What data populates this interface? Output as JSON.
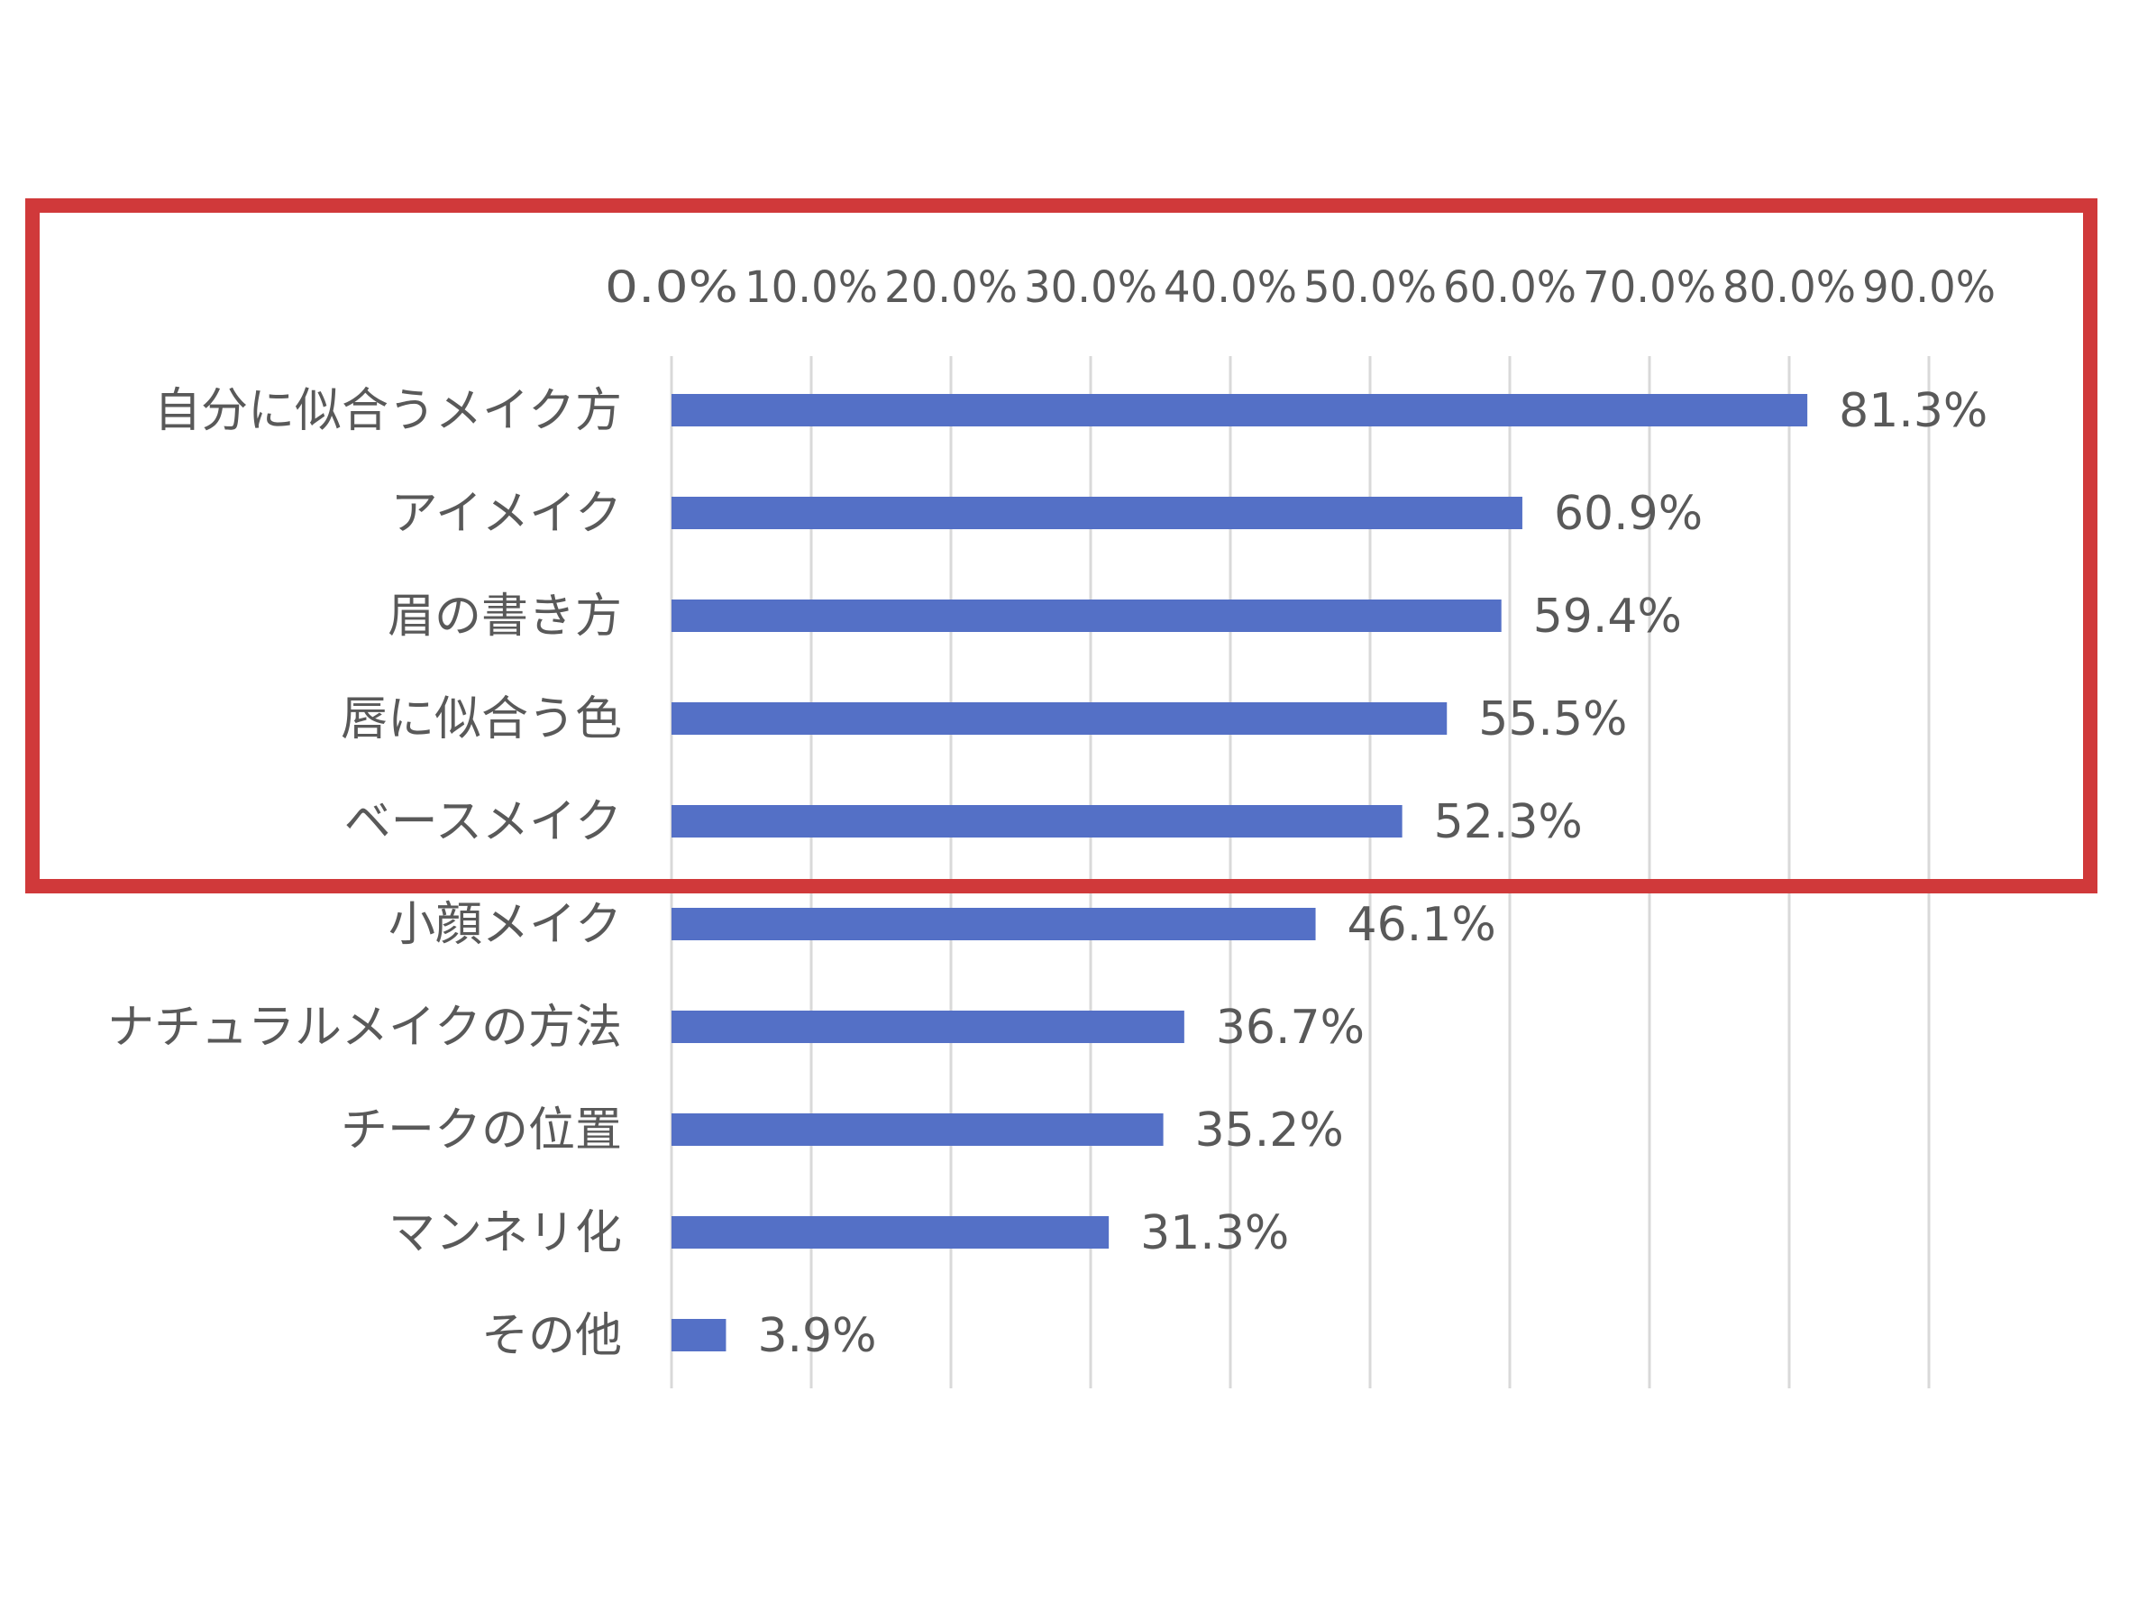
{
  "chart_data": {
    "type": "bar",
    "orientation": "horizontal",
    "x_axis_position": "top",
    "categories": [
      "自分に似合うメイク方",
      "アイメイク",
      "眉の書き方",
      "唇に似合う色",
      "ベースメイク",
      "小顔メイク",
      "ナチュラルメイクの方法",
      "チークの位置",
      "マンネリ化",
      "その他"
    ],
    "values": [
      81.3,
      60.9,
      59.4,
      55.5,
      52.3,
      46.1,
      36.7,
      35.2,
      31.3,
      3.9
    ],
    "data_labels": [
      "81.3%",
      "60.9%",
      "59.4%",
      "55.5%",
      "52.3%",
      "46.1%",
      "36.7%",
      "35.2%",
      "31.3%",
      "3.9%"
    ],
    "tick_labels": [
      "0.0%",
      "10.0%",
      "20.0%",
      "30.0%",
      "40.0%",
      "50.0%",
      "60.0%",
      "70.0%",
      "80.0%",
      "90.0%"
    ],
    "xlim": [
      0,
      90
    ],
    "grid": true,
    "highlight": {
      "covers_categories": [
        "自分に似合うメイク方",
        "アイメイク",
        "眉の書き方",
        "唇に似合う色",
        "ベースメイク"
      ]
    },
    "colors": {
      "bar": "#5470C6",
      "grid": "#d9d9d9",
      "text": "#595959",
      "highlight": "#D0393A"
    }
  }
}
